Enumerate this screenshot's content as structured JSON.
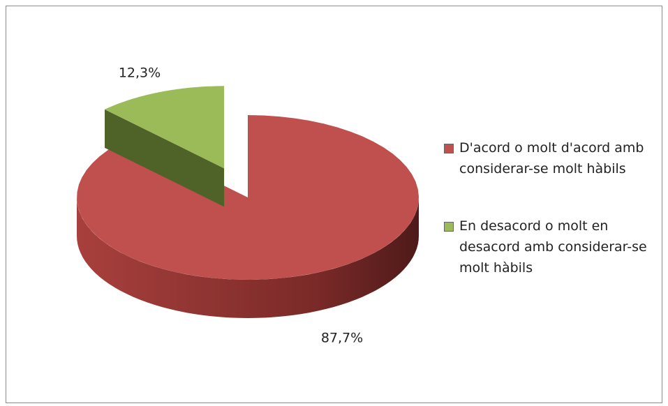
{
  "chart_data": {
    "type": "pie3d",
    "categories": [
      "D'acord o molt d'acord amb considerar-se molt hàbils",
      "En desacord o molt en desacord amb considerar-se molt hàbils"
    ],
    "values": [
      87.7,
      12.3
    ],
    "value_labels": [
      "87,7%",
      "12,3%"
    ],
    "colors": [
      "#c0504d",
      "#9bbb59"
    ],
    "legend": "right"
  }
}
